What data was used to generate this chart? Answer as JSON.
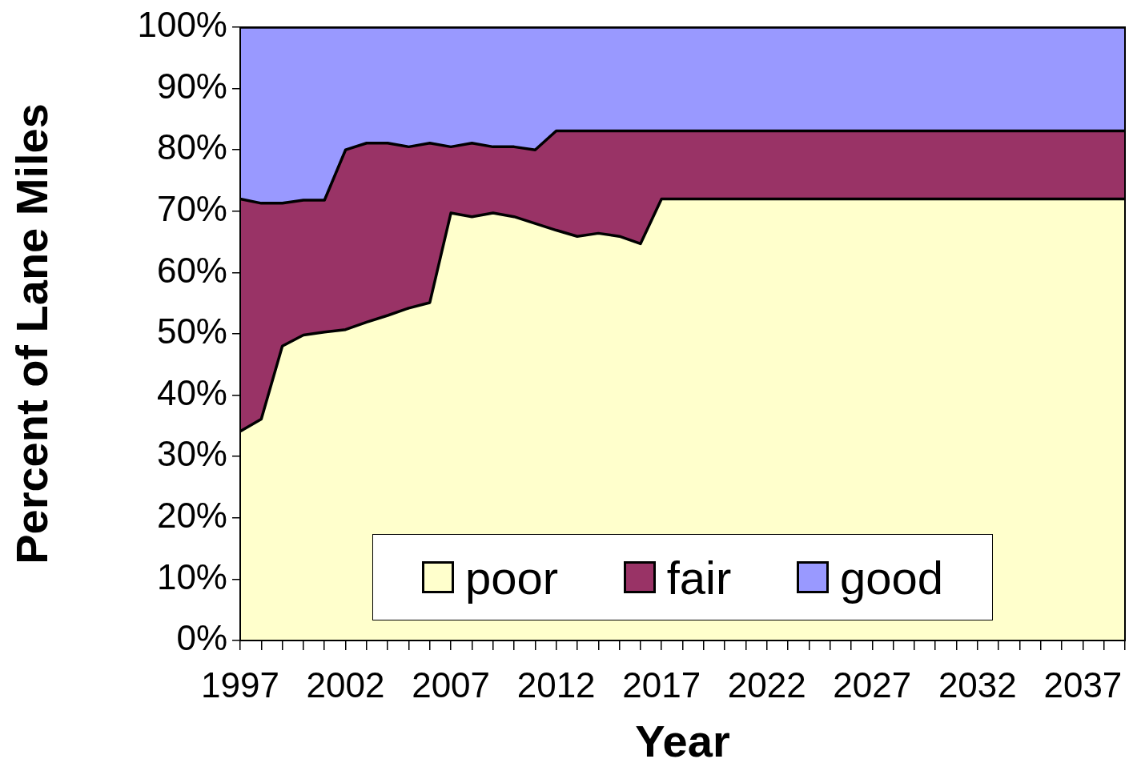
{
  "chart_data": {
    "type": "area",
    "stacked": true,
    "xlabel": "Year",
    "ylabel": "Percent of Lane Miles",
    "categories": [
      "1997",
      null,
      null,
      null,
      null,
      "2002",
      null,
      null,
      null,
      null,
      "2007",
      null,
      null,
      null,
      null,
      "2012",
      null,
      null,
      null,
      null,
      "2017",
      null,
      null,
      null,
      null,
      "2022",
      null,
      null,
      null,
      null,
      "2027",
      null,
      null,
      null,
      null,
      "2032",
      null,
      null,
      null,
      null,
      "2037",
      null,
      null
    ],
    "series": [
      {
        "name": "poor",
        "color": "#ffffcc",
        "values": [
          34.1,
          36.1,
          48.0,
          49.8,
          50.3,
          50.7,
          51.9,
          53.0,
          54.2,
          55.1,
          69.7,
          69.1,
          69.7,
          69.1,
          68.0,
          66.9,
          65.9,
          66.4,
          65.9,
          64.7,
          72.0,
          72.0,
          72.0,
          72.0,
          72.0,
          72.0,
          72.0,
          72.0,
          72.0,
          72.0,
          72.0,
          72.0,
          72.0,
          72.0,
          72.0,
          72.0,
          72.0,
          72.0,
          72.0,
          72.0,
          72.0,
          72.0,
          72.0
        ]
      },
      {
        "name": "fair",
        "color": "#993366",
        "values": [
          37.9,
          35.2,
          23.3,
          22.0,
          21.5,
          29.3,
          29.2,
          28.1,
          26.3,
          26.0,
          10.8,
          12.0,
          10.8,
          11.4,
          12.0,
          16.2,
          17.2,
          16.7,
          17.2,
          18.4,
          11.1,
          11.1,
          11.1,
          11.1,
          11.1,
          11.1,
          11.1,
          11.1,
          11.1,
          11.1,
          11.1,
          11.1,
          11.1,
          11.1,
          11.1,
          11.1,
          11.1,
          11.1,
          11.1,
          11.1,
          11.1,
          11.1,
          11.1
        ]
      },
      {
        "name": "good",
        "color": "#9999ff",
        "values": [
          28.0,
          28.7,
          28.7,
          28.2,
          28.2,
          20.0,
          18.9,
          18.9,
          19.5,
          18.9,
          19.5,
          18.9,
          19.5,
          19.5,
          20.0,
          16.9,
          16.9,
          16.9,
          16.9,
          16.9,
          16.9,
          16.9,
          16.9,
          16.9,
          16.9,
          16.9,
          16.9,
          16.9,
          16.9,
          16.9,
          16.9,
          16.9,
          16.9,
          16.9,
          16.9,
          16.9,
          16.9,
          16.9,
          16.9,
          16.9,
          16.9,
          16.9,
          16.9
        ]
      }
    ],
    "ylim": [
      0,
      100
    ],
    "yticks": [
      {
        "value": 0,
        "label": "0%"
      },
      {
        "value": 10,
        "label": "10%"
      },
      {
        "value": 20,
        "label": "20%"
      },
      {
        "value": 30,
        "label": "30%"
      },
      {
        "value": 40,
        "label": "40%"
      },
      {
        "value": 50,
        "label": "50%"
      },
      {
        "value": 60,
        "label": "60%"
      },
      {
        "value": 70,
        "label": "70%"
      },
      {
        "value": 80,
        "label": "80%"
      },
      {
        "value": 90,
        "label": "90%"
      },
      {
        "value": 100,
        "label": "100%"
      }
    ],
    "legend": "bottom"
  }
}
